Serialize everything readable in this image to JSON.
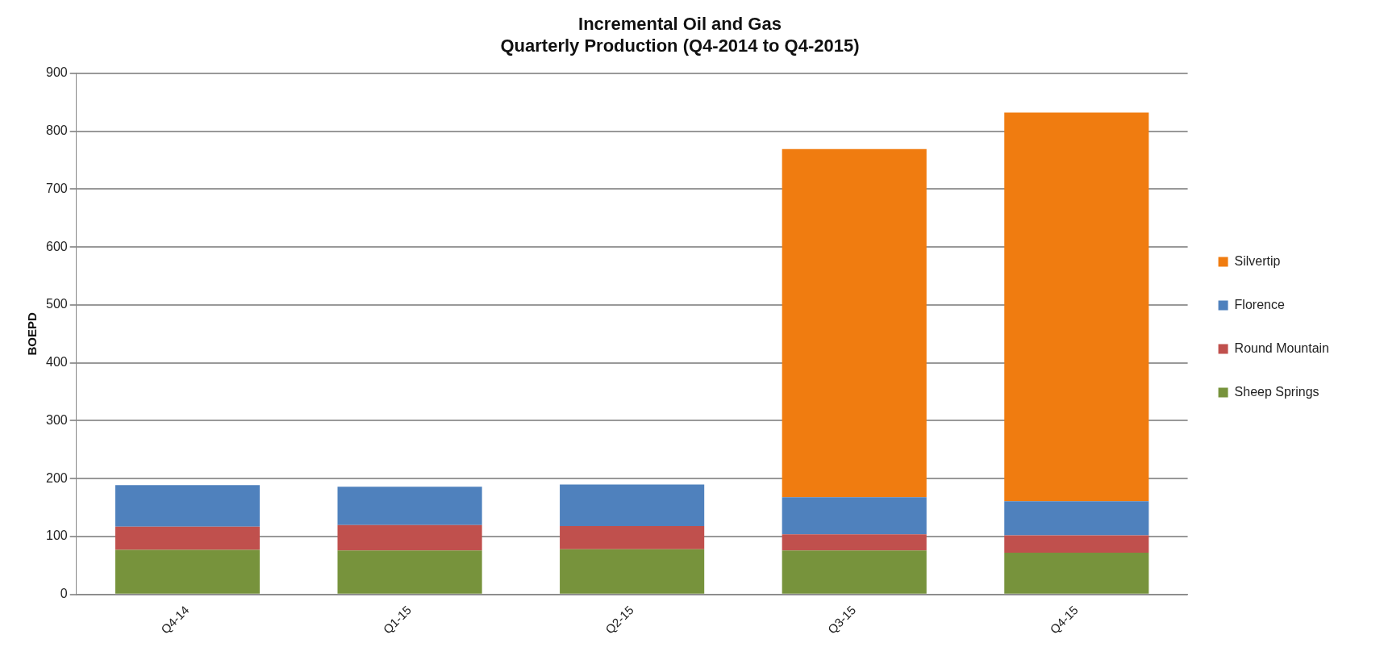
{
  "chart_data": {
    "type": "bar",
    "title": "Incremental Oil and Gas\nQuarterly Production (Q4-2014 to Q4-2015)",
    "ylabel": "BOEPD",
    "categories": [
      "Q4-14",
      "Q1-15",
      "Q2-15",
      "Q3-15",
      "Q4-15"
    ],
    "stacked": true,
    "series": [
      {
        "name": "Sheep Springs",
        "color": "#77933c",
        "values": [
          77,
          76,
          78,
          76,
          72
        ]
      },
      {
        "name": "Round Mountain",
        "color": "#c0504d",
        "values": [
          40,
          44,
          40,
          28,
          30
        ]
      },
      {
        "name": "Florence",
        "color": "#4f81bd",
        "values": [
          72,
          66,
          72,
          64,
          59
        ]
      },
      {
        "name": "Silvertip",
        "color": "#f07c10",
        "values": [
          null,
          null,
          null,
          601,
          671
        ]
      }
    ],
    "ylim": [
      0,
      900
    ],
    "yticks": [
      0,
      100,
      200,
      300,
      400,
      500,
      600,
      700,
      800,
      900
    ],
    "grid": "y",
    "legend": "right"
  }
}
